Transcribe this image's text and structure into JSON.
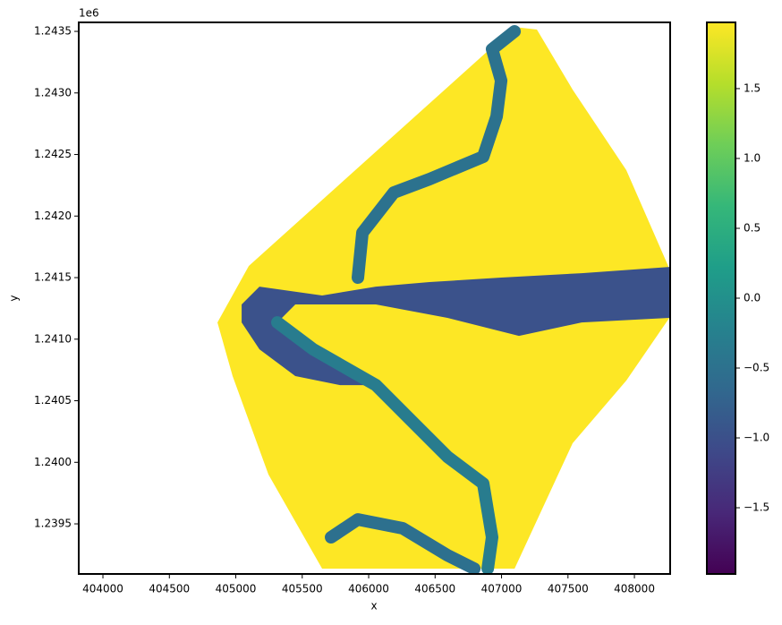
{
  "chart_data": {
    "type": "raster",
    "x_label": "x",
    "y_label": "y",
    "y_offset_text": "1e6",
    "xlim": [
      403818,
      408269
    ],
    "ylim": [
      1239093,
      1243573
    ],
    "xticks": [
      404000,
      404500,
      405000,
      405500,
      406000,
      406500,
      407000,
      407500,
      408000
    ],
    "yticks": [
      {
        "value": 1239500,
        "label": "1.2395"
      },
      {
        "value": 1240000,
        "label": "1.2400"
      },
      {
        "value": 1240500,
        "label": "1.2405"
      },
      {
        "value": 1241000,
        "label": "1.2410"
      },
      {
        "value": 1241500,
        "label": "1.2415"
      },
      {
        "value": 1242000,
        "label": "1.2420"
      },
      {
        "value": 1242500,
        "label": "1.2425"
      },
      {
        "value": 1243000,
        "label": "1.2430"
      },
      {
        "value": 1243500,
        "label": "1.2435"
      }
    ],
    "clim": [
      -1.974,
      1.974
    ],
    "cticks": [
      {
        "value": -1.5,
        "label": "−1.5"
      },
      {
        "value": -1.0,
        "label": "−1.0"
      },
      {
        "value": -0.5,
        "label": "−0.5"
      },
      {
        "value": 0,
        "label": "0.0"
      },
      0.5,
      {
        "value": 1.0,
        "label": "1.0"
      },
      1.5
    ],
    "colormap": [
      "#440154",
      "#482878",
      "#3e4989",
      "#31688e",
      "#26828e",
      "#1f9e89",
      "#35b779",
      "#6ece58",
      "#b5de2b",
      "#fde725"
    ],
    "regions": [
      {
        "value": 1.95,
        "color": "#fde725",
        "x": [
          404862,
          405098,
          406963,
          407098,
          407266,
          407535,
          407939,
          408263,
          408263,
          407939,
          407535,
          407098,
          405650,
          405246,
          404976
        ],
        "y": [
          1241136,
          1241595,
          1243405,
          1243536,
          1243515,
          1243027,
          1242373,
          1241573,
          1241173,
          1240664,
          1240155,
          1239136,
          1239136,
          1239900,
          1240700
        ]
      },
      {
        "value": -1.0,
        "color": "#3b528b",
        "x": [
          405044,
          405178,
          405650,
          406054,
          406458,
          406997,
          407603,
          408263,
          408263,
          407603,
          407131,
          406593,
          406054,
          405448,
          405313,
          405448,
          405785,
          406054,
          405785,
          405448,
          405178,
          405044
        ],
        "y": [
          1241282,
          1241427,
          1241355,
          1241427,
          1241464,
          1241500,
          1241536,
          1241587,
          1241173,
          1241136,
          1241027,
          1241173,
          1241282,
          1241282,
          1241136,
          1240991,
          1240773,
          1240627,
          1240627,
          1240700,
          1240918,
          1241136
        ]
      }
    ],
    "channels": [
      {
        "value": -0.3,
        "color": "#2c728e",
        "x": [
          405919,
          405953,
          406189,
          406458,
          406862,
          406963,
          406997,
          406929,
          407098
        ],
        "y": [
          1241500,
          1241864,
          1242191,
          1242300,
          1242482,
          1242809,
          1243100,
          1243355,
          1243500
        ]
      },
      {
        "value": -0.2,
        "color": "#287c8e",
        "x": [
          405313,
          405582,
          406054,
          406323,
          406593,
          406862,
          406929,
          406896
        ],
        "y": [
          1241136,
          1240918,
          1240627,
          1240336,
          1240045,
          1239827,
          1239391,
          1239136
        ]
      },
      {
        "value": -0.4,
        "color": "#2d708e",
        "x": [
          405717,
          405919,
          406256,
          406593,
          406795
        ],
        "y": [
          1239391,
          1239536,
          1239464,
          1239245,
          1239136
        ]
      }
    ]
  }
}
